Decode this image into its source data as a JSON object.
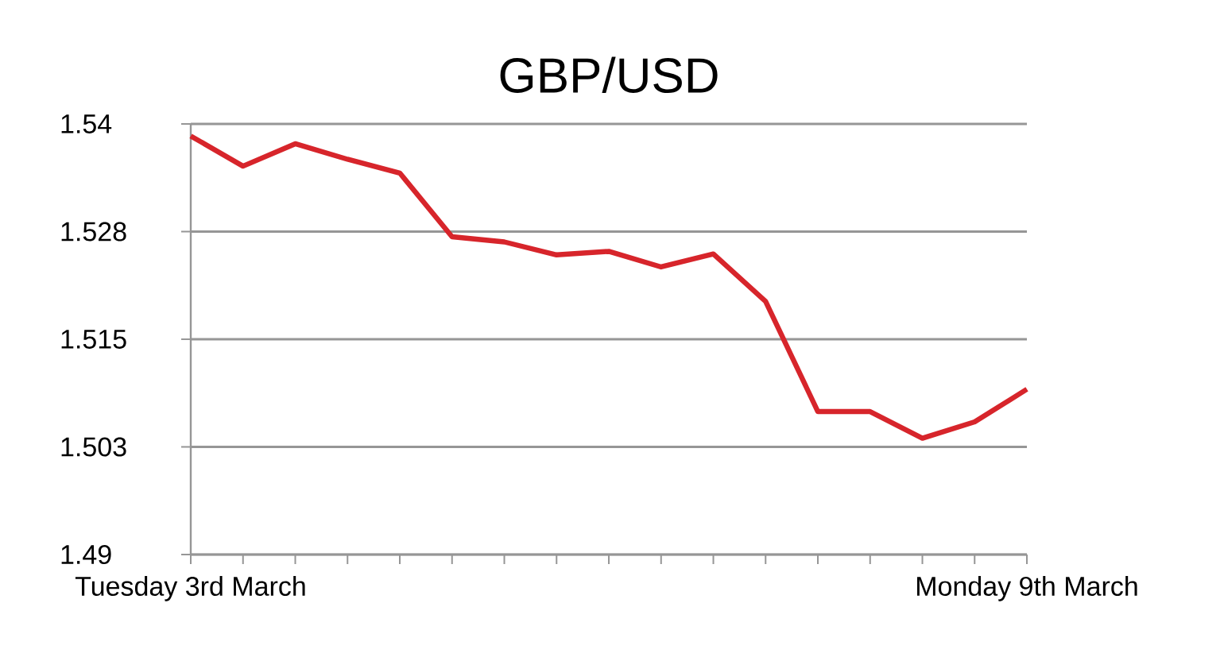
{
  "chart_data": {
    "type": "line",
    "title": "GBP/USD",
    "categories": [
      "Tuesday 3rd March",
      null,
      null,
      null,
      null,
      null,
      null,
      null,
      null,
      null,
      null,
      null,
      null,
      null,
      null,
      null,
      "Monday 9th March"
    ],
    "series": [
      {
        "color": "#d7252b",
        "values": [
          1.5386,
          1.5351,
          1.5377,
          1.5359,
          1.5343,
          1.5269,
          1.5263,
          1.5248,
          1.5252,
          1.5234,
          1.5249,
          1.5194,
          1.5066,
          1.5066,
          1.5035,
          1.5054,
          1.5092
        ]
      }
    ],
    "ylim": [
      1.49,
      1.54
    ],
    "yticks": [
      1.49,
      {
        "value": 1.5025,
        "label": "1.503"
      },
      1.515,
      {
        "value": 1.5275,
        "label": "1.528"
      },
      1.54
    ],
    "grid": "y"
  }
}
